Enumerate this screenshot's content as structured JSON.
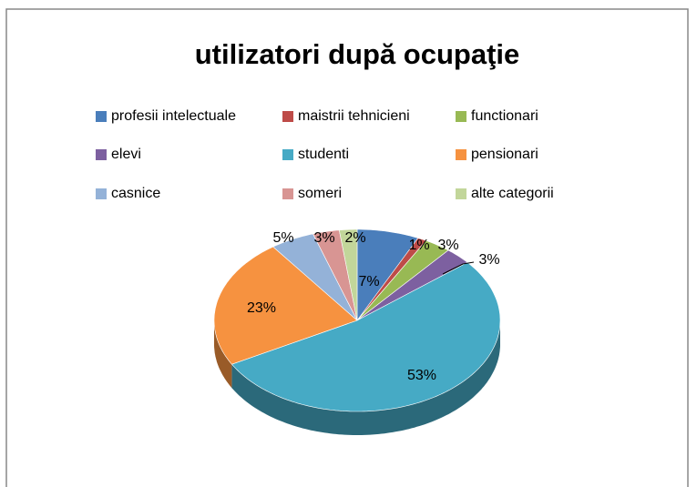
{
  "chart_data": {
    "type": "pie",
    "title": "utilizatori după ocupaţie",
    "categories": [
      "profesii intelectuale",
      "maistrii tehnicieni",
      "functionari",
      "elevi",
      "studenti",
      "pensionari",
      "casnice",
      "someri",
      "alte categorii"
    ],
    "values": [
      7,
      1,
      3,
      3,
      53,
      23,
      5,
      3,
      2
    ],
    "value_labels": [
      "7%",
      "1%",
      "3%",
      "3%",
      "53%",
      "23%",
      "5%",
      "3%",
      "2%"
    ],
    "colors": [
      "#4a7ebb",
      "#be4b48",
      "#98b954",
      "#7d60a0",
      "#46aac5",
      "#f69240",
      "#94b2d8",
      "#d89593",
      "#c2d69a"
    ],
    "legend": "top"
  }
}
